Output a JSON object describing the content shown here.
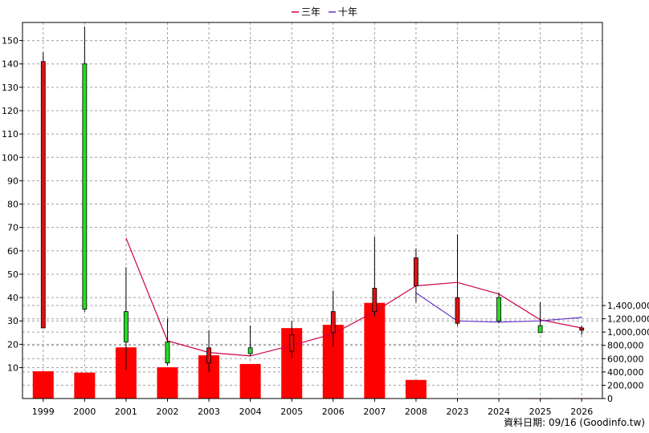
{
  "legend": [
    {
      "label": "三年",
      "color": "#cc0044"
    },
    {
      "label": "十年",
      "color": "#6633cc"
    }
  ],
  "footer_note": "資料日期: 09/16  (Goodinfo.tw)",
  "chart_data": {
    "type": "candlestick+bar",
    "categories": [
      "1999",
      "2000",
      "2001",
      "2002",
      "2003",
      "2004",
      "2005",
      "2006",
      "2007",
      "2008",
      "2023",
      "2024",
      "2025",
      "2026"
    ],
    "price_axis": {
      "ticks": [
        10,
        20,
        30,
        40,
        50,
        60,
        70,
        80,
        90,
        100,
        110,
        120,
        130,
        140,
        150
      ]
    },
    "volume_axis": {
      "ticks": [
        0,
        200000,
        400000,
        600000,
        800000,
        1000000,
        1200000,
        1400000
      ],
      "tick_labels": [
        "0",
        "200,000",
        "400,000",
        "600,000",
        "800,000",
        "1,000,000",
        "1,200,000",
        "1,400,000"
      ]
    },
    "candles": [
      {
        "open": 27,
        "close": 141,
        "high": 145,
        "low": 27
      },
      {
        "open": 140,
        "close": 35,
        "high": 156,
        "low": 34
      },
      {
        "open": 34,
        "close": 21,
        "high": 53,
        "low": 9
      },
      {
        "open": 21,
        "close": 12,
        "high": 31,
        "low": 11
      },
      {
        "open": 12,
        "close": 18.5,
        "high": 26,
        "low": 8
      },
      {
        "open": 18.5,
        "close": 16,
        "high": 28,
        "low": 15
      },
      {
        "open": 17,
        "close": 24,
        "high": 30,
        "low": 14
      },
      {
        "open": 25,
        "close": 34,
        "high": 43,
        "low": 19
      },
      {
        "open": 34,
        "close": 44,
        "high": 66,
        "low": 32
      },
      {
        "open": 45,
        "close": 57,
        "high": 61,
        "low": 38
      },
      {
        "open": 29,
        "close": 40,
        "high": 67,
        "low": 28
      },
      {
        "open": 40,
        "close": 30,
        "high": 42,
        "low": 29
      },
      {
        "open": 28,
        "close": 25,
        "high": 38,
        "low": 25
      },
      {
        "open": 26,
        "close": 27,
        "high": 28,
        "low": 24
      }
    ],
    "series": [
      {
        "name": "三年",
        "color": "#cc0044",
        "values": [
          null,
          null,
          65.5,
          21.5,
          16.5,
          15,
          19.5,
          24.5,
          34,
          45,
          46.5,
          41.5,
          30.5,
          27
        ]
      },
      {
        "name": "十年",
        "color": "#6633cc",
        "values": [
          null,
          null,
          null,
          null,
          null,
          null,
          null,
          null,
          null,
          42,
          30,
          29.5,
          30,
          31.5
        ]
      }
    ],
    "volume": [
      410000,
      390000,
      770000,
      470000,
      650000,
      520000,
      1060000,
      1110000,
      1440000,
      280000,
      0,
      0,
      5000,
      5000
    ],
    "grid": true
  }
}
